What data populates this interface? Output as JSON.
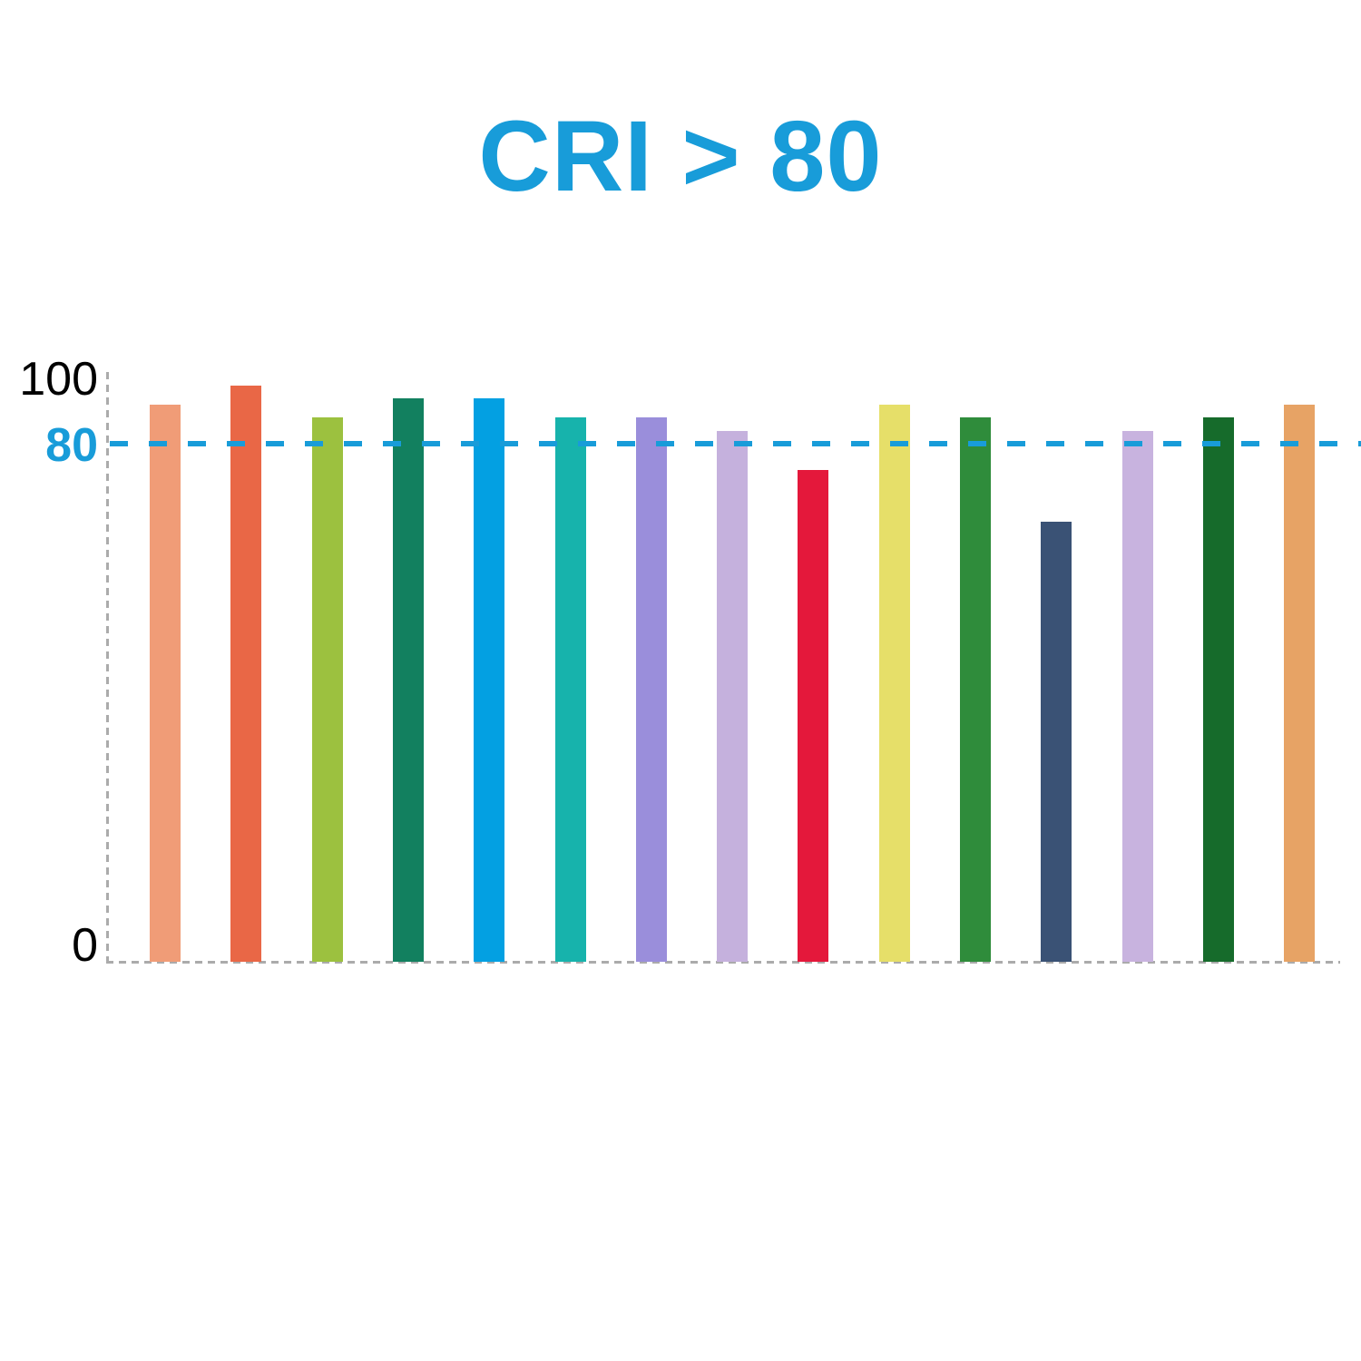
{
  "title": {
    "text": "CRI > 80",
    "color": "#189CD9"
  },
  "chart_data": {
    "type": "bar",
    "title": "CRI > 80",
    "xlabel": "",
    "ylabel": "",
    "ylim": [
      0,
      100
    ],
    "grid": "dashed-gray-axes-only",
    "legend_position": "none",
    "x_tick_labels": [],
    "yticks": [
      {
        "label": "100",
        "value": 100,
        "color": "#000000",
        "bold": false
      },
      {
        "label": "80",
        "value": 80,
        "color": "#189CD9",
        "bold": true
      },
      {
        "label": "0",
        "value": 0,
        "color": "#000000",
        "bold": false
      }
    ],
    "threshold_line": {
      "value": 80,
      "style": "dashed",
      "color": "#189CD9"
    },
    "values": [
      86,
      89,
      84,
      87,
      87,
      84,
      84,
      82,
      76,
      86,
      84,
      68,
      82,
      84,
      86
    ],
    "bar_colors": [
      "#F09C77",
      "#E96746",
      "#9CC13F",
      "#12805F",
      "#03A0E2",
      "#17B3AC",
      "#9A8EDB",
      "#C5B1DD",
      "#E4183B",
      "#E6DF69",
      "#2F8C3B",
      "#3A5275",
      "#C8B3DF",
      "#166B2B",
      "#E7A365"
    ]
  }
}
